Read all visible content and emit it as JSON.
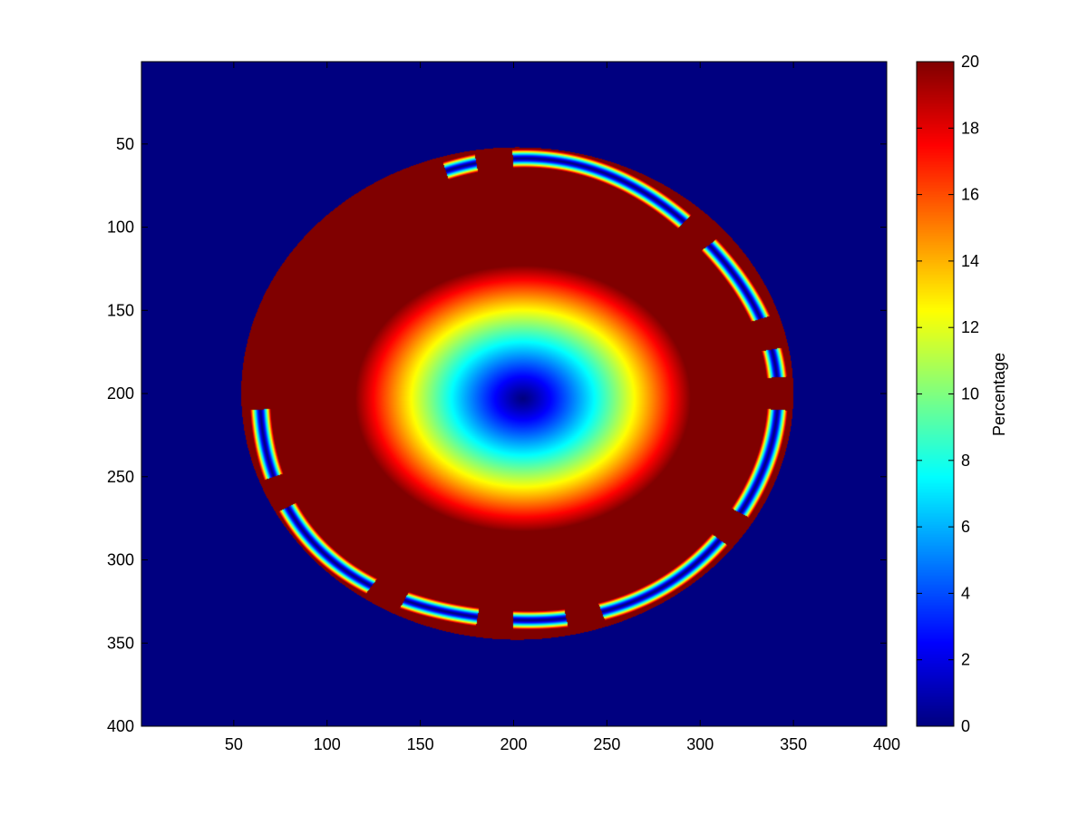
{
  "chart_data": {
    "type": "heatmap",
    "title": "",
    "xlabel": "",
    "ylabel": "",
    "xlim": [
      1,
      400
    ],
    "ylim": [
      1,
      400
    ],
    "y_direction": "reversed",
    "x_ticks": [
      50,
      100,
      150,
      200,
      250,
      300,
      350,
      400
    ],
    "y_ticks": [
      50,
      100,
      150,
      200,
      250,
      300,
      350,
      400
    ],
    "x_tick_labels": [
      "50",
      "100",
      "150",
      "200",
      "250",
      "300",
      "350",
      "400"
    ],
    "y_tick_labels": [
      "50",
      "100",
      "150",
      "200",
      "250",
      "300",
      "350",
      "400"
    ],
    "colormap": "jet",
    "colorbar": {
      "label": "Percentage",
      "limits": [
        0,
        20
      ],
      "ticks": [
        0,
        2,
        4,
        6,
        8,
        10,
        12,
        14,
        16,
        18,
        20
      ],
      "tick_labels": [
        "0",
        "2",
        "4",
        "6",
        "8",
        "10",
        "12",
        "14",
        "16",
        "18",
        "20"
      ],
      "placement": "right"
    },
    "field": {
      "background_value": 0,
      "disk": {
        "center": [
          202,
          200
        ],
        "radius_x": 148,
        "radius_y": 148,
        "fill_value": 20
      },
      "inner_gradient": {
        "center": [
          205,
          203
        ],
        "radius_x": 90,
        "radius_y": 80,
        "center_value": 0,
        "edge_value": 20
      },
      "edge_ring": {
        "radius_frac_from": 0.9,
        "radius_frac_to": 0.975,
        "min_value": 0,
        "max_value": 20
      },
      "edge_notches_deg": [
        -95,
        -45,
        -15,
        0,
        35,
        75,
        95,
        120,
        155,
        180,
        215,
        250
      ]
    }
  }
}
